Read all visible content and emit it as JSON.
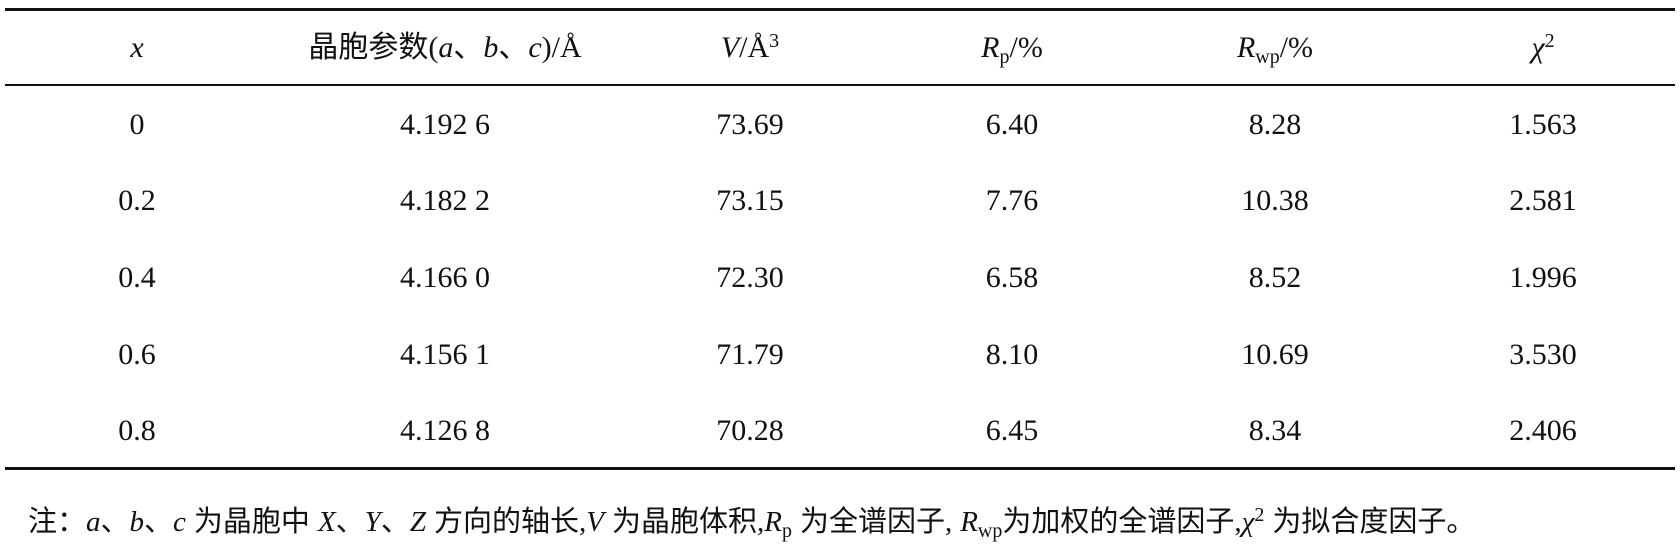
{
  "table": {
    "header": [
      [
        "x"
      ],
      [
        "晶胞参数(",
        "a",
        "、",
        "b",
        "、",
        "c",
        ")/Å"
      ],
      [
        "V",
        "/Å",
        "3"
      ],
      [
        "R",
        "p",
        "/%"
      ],
      [
        "R",
        "wp",
        "/%"
      ],
      [
        "χ",
        "2"
      ]
    ],
    "rows": [
      [
        "0",
        "4.192 6",
        "73.69",
        "6.40",
        "8.28",
        "1.563"
      ],
      [
        "0.2",
        "4.182 2",
        "73.15",
        "7.76",
        "10.38",
        "2.581"
      ],
      [
        "0.4",
        "4.166 0",
        "72.30",
        "6.58",
        "8.52",
        "1.996"
      ],
      [
        "0.6",
        "4.156 1",
        "71.79",
        "8.10",
        "10.69",
        "3.530"
      ],
      [
        "0.8",
        "4.126 8",
        "70.28",
        "6.45",
        "8.34",
        "2.406"
      ]
    ]
  },
  "note": [
    "注：",
    "a",
    "、",
    "b",
    "、",
    "c",
    "为晶胞中",
    "X",
    "、",
    "Y",
    "、",
    "Z",
    "方向的轴长,",
    "V",
    "为晶胞体积,",
    "R",
    "p",
    "为全谱因子,",
    "R",
    "wp",
    "为加权的全谱因子,",
    "χ",
    "2",
    "为拟合度因子。"
  ]
}
